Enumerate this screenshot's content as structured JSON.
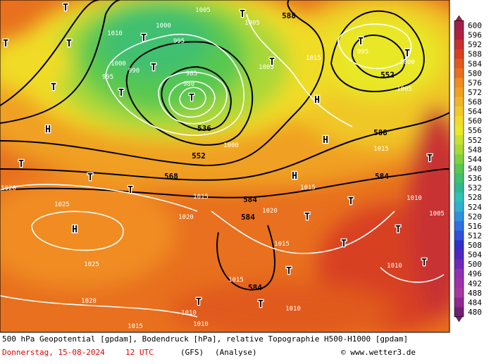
{
  "map": {
    "geopotential_labels": [
      "588",
      "552",
      "536",
      "552",
      "568",
      "588",
      "584",
      "584",
      "584",
      "584"
    ],
    "pressure_labels": [
      "1005",
      "1000",
      "995",
      "1010",
      "1000",
      "990",
      "995",
      "985",
      "980",
      "1005",
      "995",
      "1000",
      "1005",
      "1015",
      "1005",
      "1000",
      "1015",
      "1015",
      "1020",
      "1025",
      "1025",
      "1020",
      "1020",
      "1015",
      "1015",
      "1010",
      "1010",
      "1005",
      "1010",
      "1015",
      "1020",
      "1010",
      "1015",
      "1010"
    ],
    "centers": [
      "T",
      "T",
      "T",
      "T",
      "H",
      "T",
      "T",
      "T",
      "T",
      "H",
      "H",
      "T",
      "T",
      "T",
      "H",
      "H",
      "T",
      "T",
      "T",
      "T",
      "T",
      "T",
      "T",
      "T",
      "T",
      "T",
      "T",
      "T",
      "T"
    ]
  },
  "colorbar": {
    "levels": [
      600,
      596,
      592,
      588,
      584,
      580,
      576,
      572,
      568,
      564,
      560,
      556,
      552,
      548,
      544,
      540,
      536,
      532,
      528,
      524,
      520,
      516,
      512,
      508,
      504,
      500,
      496,
      492,
      488,
      484,
      480
    ],
    "colors": [
      "#a0204a",
      "#b02040",
      "#c83030",
      "#d84020",
      "#e05a1e",
      "#e8701e",
      "#f08c20",
      "#f0a020",
      "#f0b428",
      "#f0c828",
      "#f0dc28",
      "#e8e828",
      "#c8e030",
      "#a8d838",
      "#80d040",
      "#58c850",
      "#40c070",
      "#30b890",
      "#30c0b8",
      "#30b0d0",
      "#3090e0",
      "#3070e0",
      "#3050d8",
      "#3030c8",
      "#5028c0",
      "#7028b8",
      "#9030b0",
      "#a030a8",
      "#a838a0",
      "#902890",
      "#702070"
    ]
  },
  "footer": {
    "description": "500 hPa Geopotential [gpdam], Bodendruck [hPa], relative Topographie H500-H1000 [gpdam]",
    "date": "Donnerstag, 15-08-2024",
    "time": "12 UTC",
    "model": "(GFS)",
    "run": "(Analyse)",
    "copyright": "© www.wetter3.de"
  }
}
